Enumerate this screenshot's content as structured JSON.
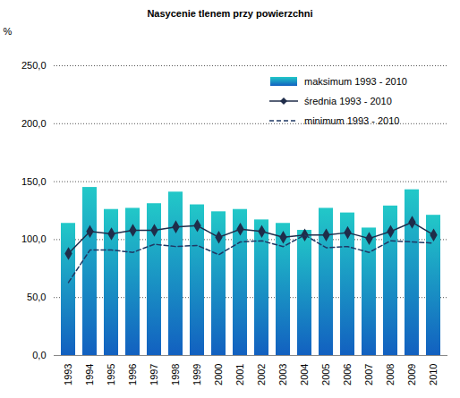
{
  "chart_data": {
    "type": "bar",
    "title": "Nasycenie tlenem przy powierzchni",
    "y_label": "%",
    "categories": [
      "1993",
      "1994",
      "1995",
      "1996",
      "1997",
      "1998",
      "1999",
      "2000",
      "2001",
      "2002",
      "2003",
      "2004",
      "2005",
      "2006",
      "2007",
      "2008",
      "2009",
      "2010"
    ],
    "series": [
      {
        "name": "maksimum 1993 - 2010",
        "type": "bar",
        "color": "#22c8c8",
        "values": [
          114,
          145,
          126,
          127,
          131,
          141,
          130,
          124,
          126,
          117,
          114,
          108,
          127,
          123,
          110,
          129,
          143,
          121
        ]
      },
      {
        "name": "średnia 1993 - 2010",
        "type": "line",
        "color": "#1f2d4a",
        "marker": "diamond",
        "line_style": "solid",
        "values": [
          88,
          107,
          105,
          108,
          108,
          111,
          112,
          102,
          109,
          107,
          102,
          104,
          104,
          106,
          101,
          107,
          115,
          104
        ]
      },
      {
        "name": "minimum 1993 - 2010",
        "type": "line",
        "color": "#1f3864",
        "marker": "none",
        "line_style": "dashed",
        "values": [
          63,
          91,
          91,
          89,
          96,
          94,
          95,
          87,
          98,
          99,
          94,
          104,
          93,
          94,
          89,
          99,
          98,
          97
        ]
      }
    ],
    "ylim": [
      0,
      250
    ],
    "yticks": [
      {
        "value": 0,
        "label": "0,0"
      },
      {
        "value": 50,
        "label": "50,0"
      },
      {
        "value": 100,
        "label": "100,0"
      },
      {
        "value": 150,
        "label": "150,0"
      },
      {
        "value": 200,
        "label": "200,0"
      },
      {
        "value": 250,
        "label": "250,0"
      }
    ],
    "grid": true,
    "legend": "top-right"
  }
}
